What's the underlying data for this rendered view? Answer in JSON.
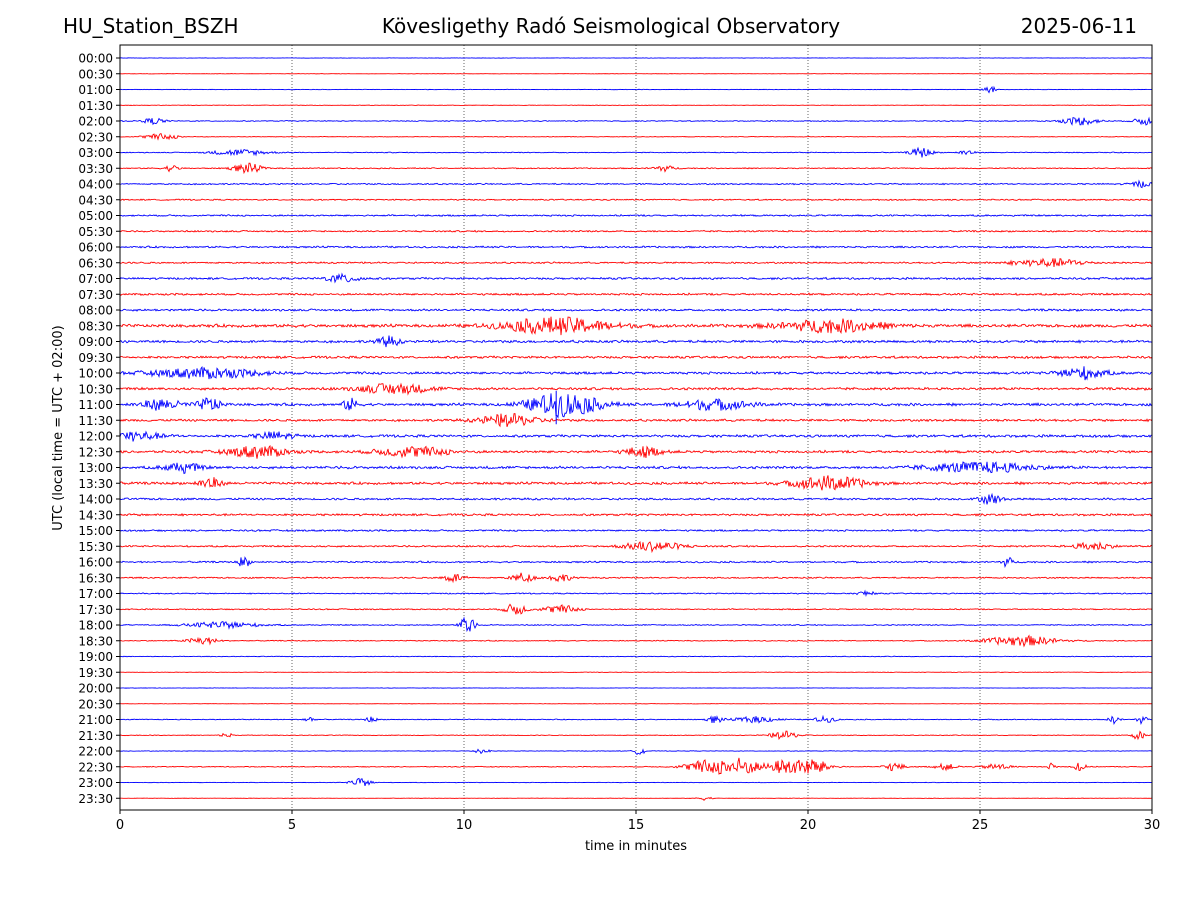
{
  "header": {
    "station": "HU_Station_BSZH",
    "observatory": "Kövesligethy Radó Seismological Observatory",
    "date": "2025-06-11"
  },
  "chart_data": {
    "type": "line",
    "title": "Kövesligethy Radó Seismological Observatory",
    "xlabel": "time in minutes",
    "ylabel": "UTC (local time = UTC + 02:00)",
    "xlim": [
      0,
      30
    ],
    "x_ticks": [
      0,
      5,
      10,
      15,
      20,
      25,
      30
    ],
    "vertical_grid": true,
    "colors": [
      "#0000ff",
      "#ff0000"
    ],
    "rows": [
      "00:00",
      "00:30",
      "01:00",
      "01:30",
      "02:00",
      "02:30",
      "03:00",
      "03:30",
      "04:00",
      "04:30",
      "05:00",
      "05:30",
      "06:00",
      "06:30",
      "07:00",
      "07:30",
      "08:00",
      "08:30",
      "09:00",
      "09:30",
      "10:00",
      "10:30",
      "11:00",
      "11:30",
      "12:00",
      "12:30",
      "13:00",
      "13:30",
      "14:00",
      "14:30",
      "15:00",
      "15:30",
      "16:00",
      "16:30",
      "17:00",
      "17:30",
      "18:00",
      "18:30",
      "19:00",
      "19:30",
      "20:00",
      "20:30",
      "21:00",
      "21:30",
      "22:00",
      "22:30",
      "23:00",
      "23:30"
    ],
    "noise_level": [
      0.15,
      0.15,
      0.2,
      0.2,
      0.4,
      0.25,
      0.35,
      0.45,
      0.6,
      0.55,
      0.7,
      0.65,
      0.75,
      0.7,
      0.85,
      0.85,
      0.9,
      1.3,
      1.1,
      1.0,
      1.1,
      1.05,
      1.1,
      1.0,
      1.1,
      1.1,
      1.1,
      1.05,
      0.9,
      0.9,
      0.75,
      0.7,
      0.7,
      0.6,
      0.5,
      0.5,
      0.45,
      0.4,
      0.3,
      0.2,
      0.15,
      0.15,
      0.35,
      0.3,
      0.25,
      0.35,
      0.2,
      0.15
    ],
    "events": [
      {
        "row": 2,
        "t": 25.3,
        "amp": 3,
        "dur": 0.2
      },
      {
        "row": 4,
        "t": 1.0,
        "amp": 3,
        "dur": 0.3
      },
      {
        "row": 4,
        "t": 27.9,
        "amp": 4,
        "dur": 0.5
      },
      {
        "row": 4,
        "t": 29.8,
        "amp": 4,
        "dur": 0.3
      },
      {
        "row": 5,
        "t": 1.2,
        "amp": 3,
        "dur": 0.5
      },
      {
        "row": 6,
        "t": 3.5,
        "amp": 3,
        "dur": 0.8
      },
      {
        "row": 6,
        "t": 23.3,
        "amp": 5,
        "dur": 0.3
      },
      {
        "row": 6,
        "t": 24.6,
        "amp": 3,
        "dur": 0.2
      },
      {
        "row": 7,
        "t": 1.5,
        "amp": 3,
        "dur": 0.2
      },
      {
        "row": 7,
        "t": 3.7,
        "amp": 5,
        "dur": 0.4
      },
      {
        "row": 7,
        "t": 15.8,
        "amp": 3,
        "dur": 0.3
      },
      {
        "row": 8,
        "t": 29.7,
        "amp": 3,
        "dur": 0.3
      },
      {
        "row": 13,
        "t": 27.0,
        "amp": 4,
        "dur": 1.0
      },
      {
        "row": 14,
        "t": 6.5,
        "amp": 4,
        "dur": 0.5
      },
      {
        "row": 17,
        "t": 12.7,
        "amp": 8,
        "dur": 1.5
      },
      {
        "row": 17,
        "t": 20.7,
        "amp": 6,
        "dur": 1.5
      },
      {
        "row": 18,
        "t": 7.8,
        "amp": 5,
        "dur": 0.3
      },
      {
        "row": 20,
        "t": 2.5,
        "amp": 5,
        "dur": 1.5
      },
      {
        "row": 20,
        "t": 28.0,
        "amp": 6,
        "dur": 0.6
      },
      {
        "row": 21,
        "t": 8.0,
        "amp": 5,
        "dur": 1.0
      },
      {
        "row": 22,
        "t": 1.2,
        "amp": 5,
        "dur": 0.6
      },
      {
        "row": 22,
        "t": 2.6,
        "amp": 7,
        "dur": 0.3
      },
      {
        "row": 22,
        "t": 6.7,
        "amp": 6,
        "dur": 0.2
      },
      {
        "row": 22,
        "t": 12.9,
        "amp": 12,
        "dur": 1.0
      },
      {
        "row": 22,
        "t": 17.3,
        "amp": 5,
        "dur": 1.0
      },
      {
        "row": 23,
        "t": 11.3,
        "amp": 6,
        "dur": 0.8
      },
      {
        "row": 24,
        "t": 0.3,
        "amp": 5,
        "dur": 0.8
      },
      {
        "row": 24,
        "t": 4.5,
        "amp": 4,
        "dur": 0.5
      },
      {
        "row": 25,
        "t": 4.0,
        "amp": 6,
        "dur": 0.8
      },
      {
        "row": 25,
        "t": 8.5,
        "amp": 5,
        "dur": 1.0
      },
      {
        "row": 25,
        "t": 15.2,
        "amp": 5,
        "dur": 0.5
      },
      {
        "row": 26,
        "t": 1.8,
        "amp": 5,
        "dur": 0.5
      },
      {
        "row": 26,
        "t": 25.0,
        "amp": 5,
        "dur": 1.5
      },
      {
        "row": 27,
        "t": 2.6,
        "amp": 6,
        "dur": 0.3
      },
      {
        "row": 27,
        "t": 20.6,
        "amp": 7,
        "dur": 1.0
      },
      {
        "row": 28,
        "t": 25.3,
        "amp": 5,
        "dur": 0.3
      },
      {
        "row": 31,
        "t": 15.5,
        "amp": 5,
        "dur": 0.8
      },
      {
        "row": 31,
        "t": 28.3,
        "amp": 4,
        "dur": 0.5
      },
      {
        "row": 32,
        "t": 3.6,
        "amp": 6,
        "dur": 0.15
      },
      {
        "row": 32,
        "t": 25.8,
        "amp": 5,
        "dur": 0.15
      },
      {
        "row": 33,
        "t": 9.7,
        "amp": 4,
        "dur": 0.3
      },
      {
        "row": 33,
        "t": 11.7,
        "amp": 5,
        "dur": 0.3
      },
      {
        "row": 33,
        "t": 12.8,
        "amp": 4,
        "dur": 0.3
      },
      {
        "row": 34,
        "t": 21.7,
        "amp": 3,
        "dur": 0.2
      },
      {
        "row": 35,
        "t": 11.5,
        "amp": 6,
        "dur": 0.3
      },
      {
        "row": 35,
        "t": 12.8,
        "amp": 4,
        "dur": 0.5
      },
      {
        "row": 36,
        "t": 10.1,
        "amp": 9,
        "dur": 0.2
      },
      {
        "row": 36,
        "t": 3.0,
        "amp": 3,
        "dur": 1.0
      },
      {
        "row": 37,
        "t": 2.4,
        "amp": 4,
        "dur": 0.4
      },
      {
        "row": 37,
        "t": 26.2,
        "amp": 5,
        "dur": 1.0
      },
      {
        "row": 42,
        "t": 5.5,
        "amp": 3,
        "dur": 0.15
      },
      {
        "row": 42,
        "t": 7.3,
        "amp": 3,
        "dur": 0.15
      },
      {
        "row": 42,
        "t": 17.3,
        "amp": 4,
        "dur": 0.2
      },
      {
        "row": 42,
        "t": 18.5,
        "amp": 3,
        "dur": 0.6
      },
      {
        "row": 42,
        "t": 20.5,
        "amp": 3,
        "dur": 0.3
      },
      {
        "row": 42,
        "t": 28.9,
        "amp": 4,
        "dur": 0.15
      },
      {
        "row": 42,
        "t": 29.7,
        "amp": 4,
        "dur": 0.15
      },
      {
        "row": 43,
        "t": 3.1,
        "amp": 3,
        "dur": 0.15
      },
      {
        "row": 43,
        "t": 19.3,
        "amp": 4,
        "dur": 0.4
      },
      {
        "row": 43,
        "t": 29.6,
        "amp": 4,
        "dur": 0.2
      },
      {
        "row": 44,
        "t": 10.5,
        "amp": 3,
        "dur": 0.2
      },
      {
        "row": 44,
        "t": 15.1,
        "amp": 4,
        "dur": 0.15
      },
      {
        "row": 45,
        "t": 17.0,
        "amp": 6,
        "dur": 0.6
      },
      {
        "row": 45,
        "t": 18.0,
        "amp": 9,
        "dur": 0.6
      },
      {
        "row": 45,
        "t": 19.3,
        "amp": 7,
        "dur": 0.4
      },
      {
        "row": 45,
        "t": 20.1,
        "amp": 8,
        "dur": 0.5
      },
      {
        "row": 45,
        "t": 22.5,
        "amp": 4,
        "dur": 0.3
      },
      {
        "row": 45,
        "t": 24.0,
        "amp": 3,
        "dur": 0.3
      },
      {
        "row": 45,
        "t": 25.5,
        "amp": 3,
        "dur": 0.4
      },
      {
        "row": 45,
        "t": 27.1,
        "amp": 4,
        "dur": 0.1
      },
      {
        "row": 45,
        "t": 27.9,
        "amp": 6,
        "dur": 0.15
      },
      {
        "row": 46,
        "t": 7.0,
        "amp": 4,
        "dur": 0.3
      },
      {
        "row": 47,
        "t": 17.0,
        "amp": 2,
        "dur": 0.2
      }
    ]
  }
}
